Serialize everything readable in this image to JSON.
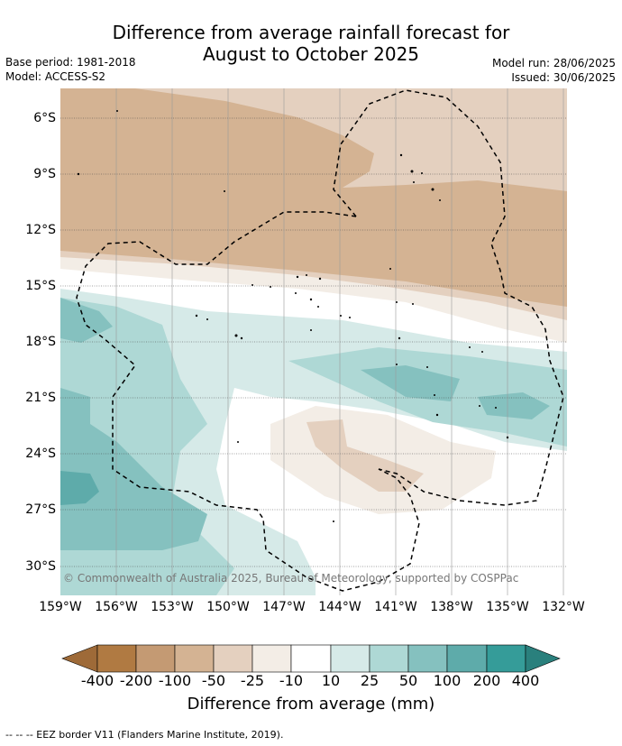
{
  "title": {
    "line1": "Difference from average rainfall forecast for",
    "line2": "August to October 2025"
  },
  "meta": {
    "base_period": "Base period: 1981-2018",
    "model": "Model: ACCESS-S2",
    "model_run": "Model run: 28/06/2025",
    "issued": "Issued: 30/06/2025"
  },
  "map": {
    "lat_labels": [
      "6°S",
      "9°S",
      "12°S",
      "15°S",
      "18°S",
      "21°S",
      "24°S",
      "27°S",
      "30°S"
    ],
    "lon_labels": [
      "159°W",
      "156°W",
      "153°W",
      "150°W",
      "147°W",
      "144°W",
      "141°W",
      "138°W",
      "135°W",
      "132°W"
    ],
    "copyright": "© Commonwealth of Australia 2025, Bureau of Meteorology, supported by COSPPac"
  },
  "colorbar": {
    "ticks": [
      "-400",
      "-200",
      "-100",
      "-50",
      "-25",
      "-10",
      "10",
      "25",
      "50",
      "100",
      "200",
      "400"
    ],
    "colors": [
      "#9e6a38",
      "#b07a42",
      "#c49a73",
      "#d4b393",
      "#e4d0bf",
      "#f3ede6",
      "#ffffff",
      "#d6eae8",
      "#aed8d5",
      "#85c1bf",
      "#5eabaa",
      "#359c99",
      "#2a807d"
    ],
    "label": "Difference from average (mm)"
  },
  "footer": "--  --  -- EEZ border V11 (Flanders Marine Institute, 2019)."
}
